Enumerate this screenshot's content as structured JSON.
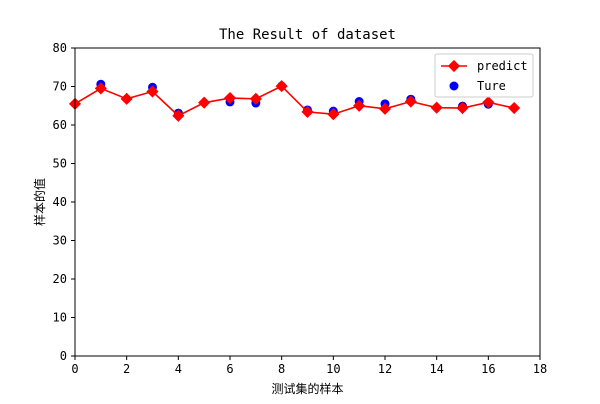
{
  "chart_data": {
    "type": "line",
    "title": "The Result of dataset",
    "xlabel": "测试集的样本",
    "ylabel": "样本的值",
    "xlim": [
      0,
      18
    ],
    "ylim": [
      0,
      80
    ],
    "xticks": [
      0,
      2,
      4,
      6,
      8,
      10,
      12,
      14,
      16,
      18
    ],
    "yticks": [
      0,
      10,
      20,
      30,
      40,
      50,
      60,
      70,
      80
    ],
    "grid": false,
    "legend_position": "top-right",
    "series": [
      {
        "name": "predict",
        "kind": "line-with-diamond-markers",
        "color": "#ff0000",
        "x": [
          0,
          1,
          2,
          3,
          4,
          5,
          6,
          7,
          8,
          9,
          10,
          11,
          12,
          13,
          14,
          15,
          16,
          17
        ],
        "values": [
          65.5,
          69.5,
          66.8,
          68.7,
          62.4,
          65.8,
          67.0,
          66.8,
          70.1,
          63.4,
          62.8,
          65.0,
          64.2,
          66.1,
          64.5,
          64.4,
          65.9,
          64.4
        ]
      },
      {
        "name": "Ture",
        "kind": "scatter",
        "color": "#0000ff",
        "x": [
          1,
          3,
          4,
          6,
          7,
          8,
          9,
          10,
          11,
          12,
          13,
          15,
          16
        ],
        "values": [
          70.6,
          69.8,
          63.1,
          66.0,
          65.7,
          70.1,
          63.9,
          63.6,
          66.1,
          65.5,
          66.7,
          64.9,
          65.4
        ]
      }
    ]
  }
}
